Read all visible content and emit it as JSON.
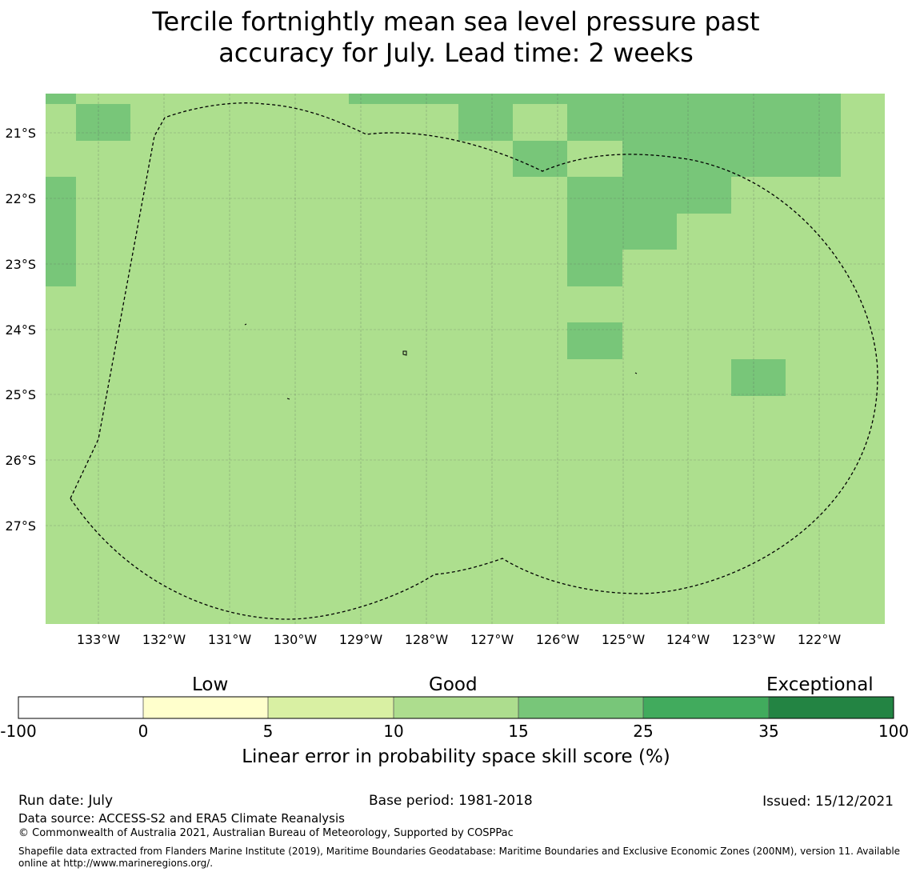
{
  "title": {
    "line1": "Tercile fortnightly mean sea level pressure past",
    "line2": "accuracy for July. Lead time: 2 weeks"
  },
  "map": {
    "lat_labels": [
      "21°S",
      "22°S",
      "23°S",
      "24°S",
      "25°S",
      "26°S",
      "27°S"
    ],
    "lon_labels": [
      "133°W",
      "132°W",
      "131°W",
      "130°W",
      "129°W",
      "128°W",
      "127°W",
      "126°W",
      "125°W",
      "124°W",
      "123°W",
      "122°W"
    ],
    "colors": {
      "background_cells": "#addf8e",
      "skill_15_25": "#78c679",
      "boundary": "#000000",
      "gridline": "#555555"
    }
  },
  "colorbar": {
    "category_labels": {
      "low": "Low",
      "good": "Good",
      "exceptional": "Exceptional"
    },
    "ticks": [
      "-100",
      "0",
      "5",
      "10",
      "15",
      "25",
      "35",
      "100"
    ],
    "colors": [
      "#ffffff",
      "#ffffcc",
      "#d9f0a3",
      "#addd8e",
      "#78c679",
      "#41ab5d",
      "#238443"
    ],
    "label": "Linear error in probability space skill score (%)"
  },
  "footer": {
    "run_date": "Run date: July",
    "base_period": "Base period: 1981-2018",
    "issued": "Issued: 15/12/2021",
    "data_source": "Data source: ACCESS-S2 and ERA5 Climate Reanalysis",
    "copyright": "© Commonwealth of Australia 2021, Australian Bureau of Meteorology, Supported by COSPPac",
    "shapefile_credit": "Shapefile data extracted from Flanders Marine Institute (2019), Maritime Boundaries Geodatabase: Maritime Boundaries and Exclusive Economic Zones (200NM), version 11. Available online at http://www.marineregions.org/."
  }
}
